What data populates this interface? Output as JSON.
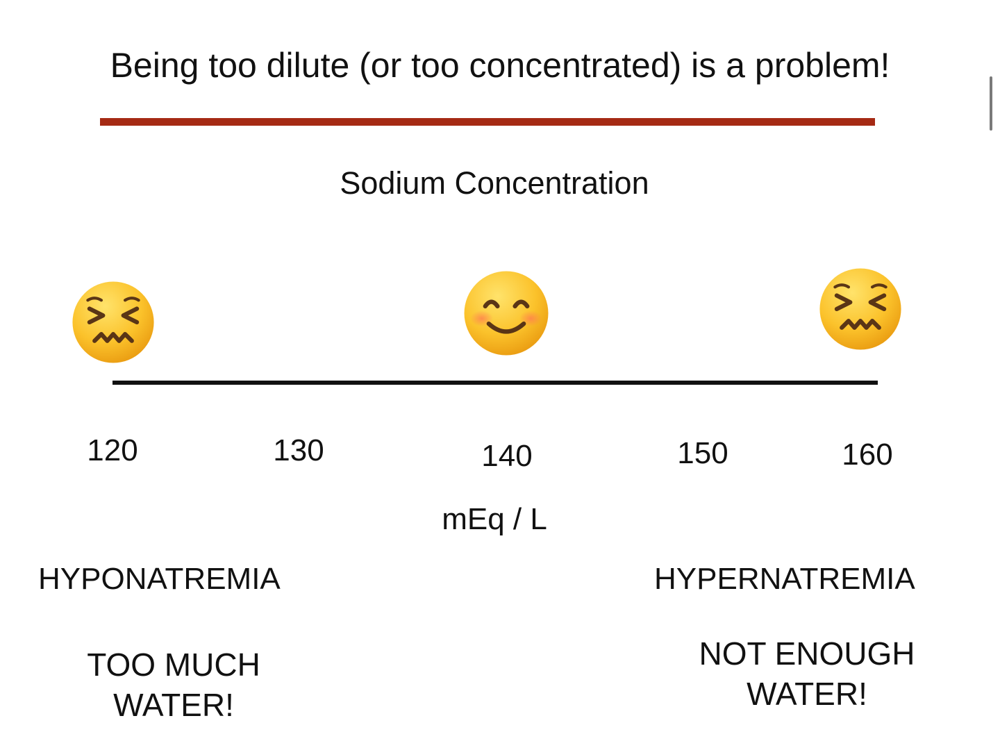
{
  "title": "Being too dilute (or too concentrated) is a problem!",
  "subtitle": "Sodium Concentration",
  "colors": {
    "accent_rule": "#a52a14",
    "emoji_face": "#f9b81a",
    "emoji_feature": "#5a3516",
    "blush": "#ff7f4f"
  },
  "scale": {
    "ticks": [
      "120",
      "130",
      "140",
      "150",
      "160"
    ],
    "unit": "mEq / L"
  },
  "markers": [
    {
      "icon": "confounded-face-icon",
      "value": 120
    },
    {
      "icon": "smiling-face-icon",
      "value": 140
    },
    {
      "icon": "confounded-face-icon",
      "value": 160
    }
  ],
  "conditions": {
    "low": {
      "label": "HYPONATREMIA",
      "line1": "TOO MUCH",
      "line2": "WATER!"
    },
    "high": {
      "label": "HYPERNATREMIA",
      "line1": "NOT ENOUGH",
      "line2": "WATER!"
    }
  }
}
